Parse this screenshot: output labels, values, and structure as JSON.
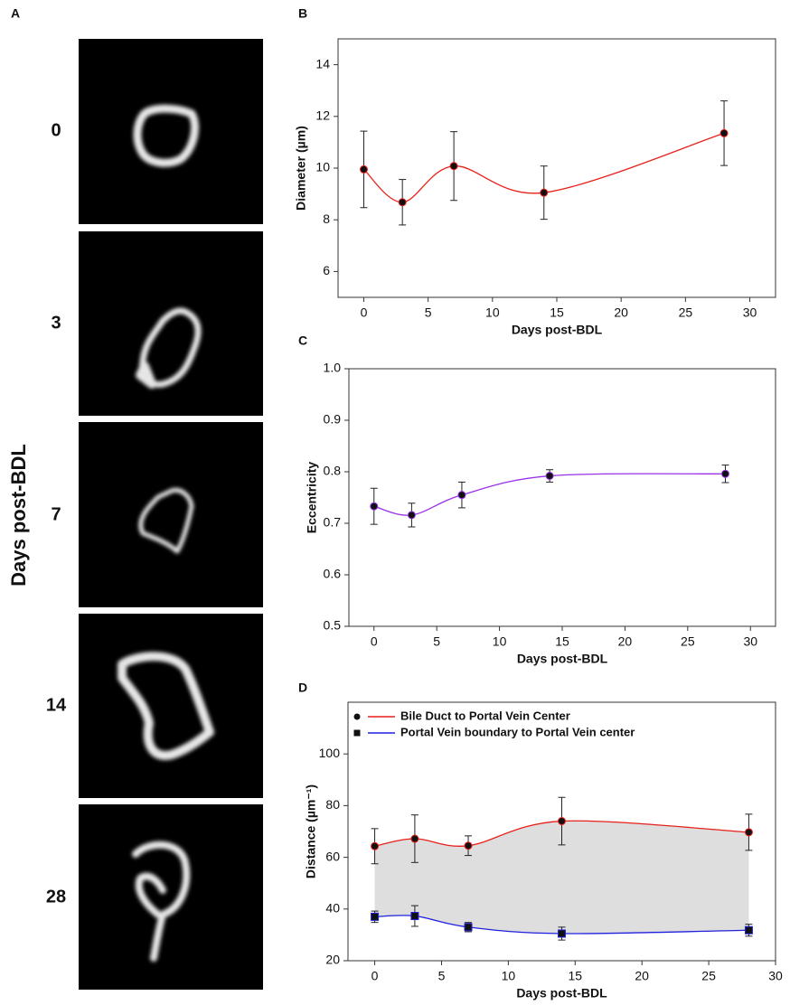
{
  "panel_a": {
    "label": "A",
    "axis_label": "Days post-BDL",
    "rows": [
      "0",
      "3",
      "7",
      "14",
      "28"
    ]
  },
  "chart_data": [
    {
      "type": "line",
      "panel_label": "B",
      "xlabel": "Days post-BDL",
      "ylabel": "Diameter (µm)",
      "x": [
        0,
        3,
        7,
        14,
        28
      ],
      "series": [
        {
          "color": "#e8201a",
          "marker": "circle",
          "values": [
            9.95,
            8.68,
            10.08,
            9.05,
            11.35
          ],
          "errors": [
            1.48,
            0.88,
            1.33,
            1.03,
            1.25
          ]
        }
      ],
      "xlim": [
        -2,
        32
      ],
      "ylim": [
        5,
        15
      ],
      "xticks": [
        0,
        5,
        10,
        15,
        20,
        25,
        30
      ],
      "yticks": [
        6,
        8,
        10,
        12,
        14
      ]
    },
    {
      "type": "line",
      "panel_label": "C",
      "xlabel": "Days post-BDL",
      "ylabel": "Eccentricity",
      "x": [
        0,
        3,
        7,
        14,
        28
      ],
      "series": [
        {
          "color": "#9b30e8",
          "marker": "circle",
          "values": [
            0.733,
            0.716,
            0.755,
            0.792,
            0.796
          ],
          "errors": [
            0.035,
            0.023,
            0.025,
            0.012,
            0.017
          ]
        }
      ],
      "xlim": [
        -2,
        32
      ],
      "ylim": [
        0.5,
        1.0
      ],
      "xticks": [
        0,
        5,
        10,
        15,
        20,
        25,
        30
      ],
      "yticks": [
        0.5,
        0.6,
        0.7,
        0.8,
        0.9,
        {
          "value": 1.0,
          "label": "1.0"
        }
      ]
    },
    {
      "type": "line",
      "panel_label": "D",
      "xlabel": "Days post-BDL",
      "ylabel": "Distance (µm⁻¹)",
      "x": [
        0,
        3,
        7,
        14,
        28
      ],
      "series": [
        {
          "name": "Bile Duct to Portal Vein Center",
          "color": "#e8201a",
          "marker": "circle",
          "values": [
            64.3,
            67.2,
            64.5,
            74.0,
            69.7
          ],
          "errors": [
            6.8,
            9.2,
            3.8,
            9.2,
            7.0
          ]
        },
        {
          "name": "Portal Vein boundary to Portal Vein center",
          "color": "#2020e0",
          "marker": "square",
          "values": [
            37.0,
            37.3,
            33.0,
            30.5,
            31.8
          ],
          "errors": [
            2.2,
            4.0,
            1.8,
            2.5,
            2.3
          ]
        }
      ],
      "fill_between": true,
      "fill_color": "#dedede",
      "legend": "upper left",
      "xlim": [
        -2,
        30
      ],
      "ylim": [
        20,
        120
      ],
      "xticks": [
        0,
        5,
        10,
        15,
        20,
        25,
        30
      ],
      "yticks": [
        20,
        40,
        60,
        80,
        100
      ]
    }
  ]
}
